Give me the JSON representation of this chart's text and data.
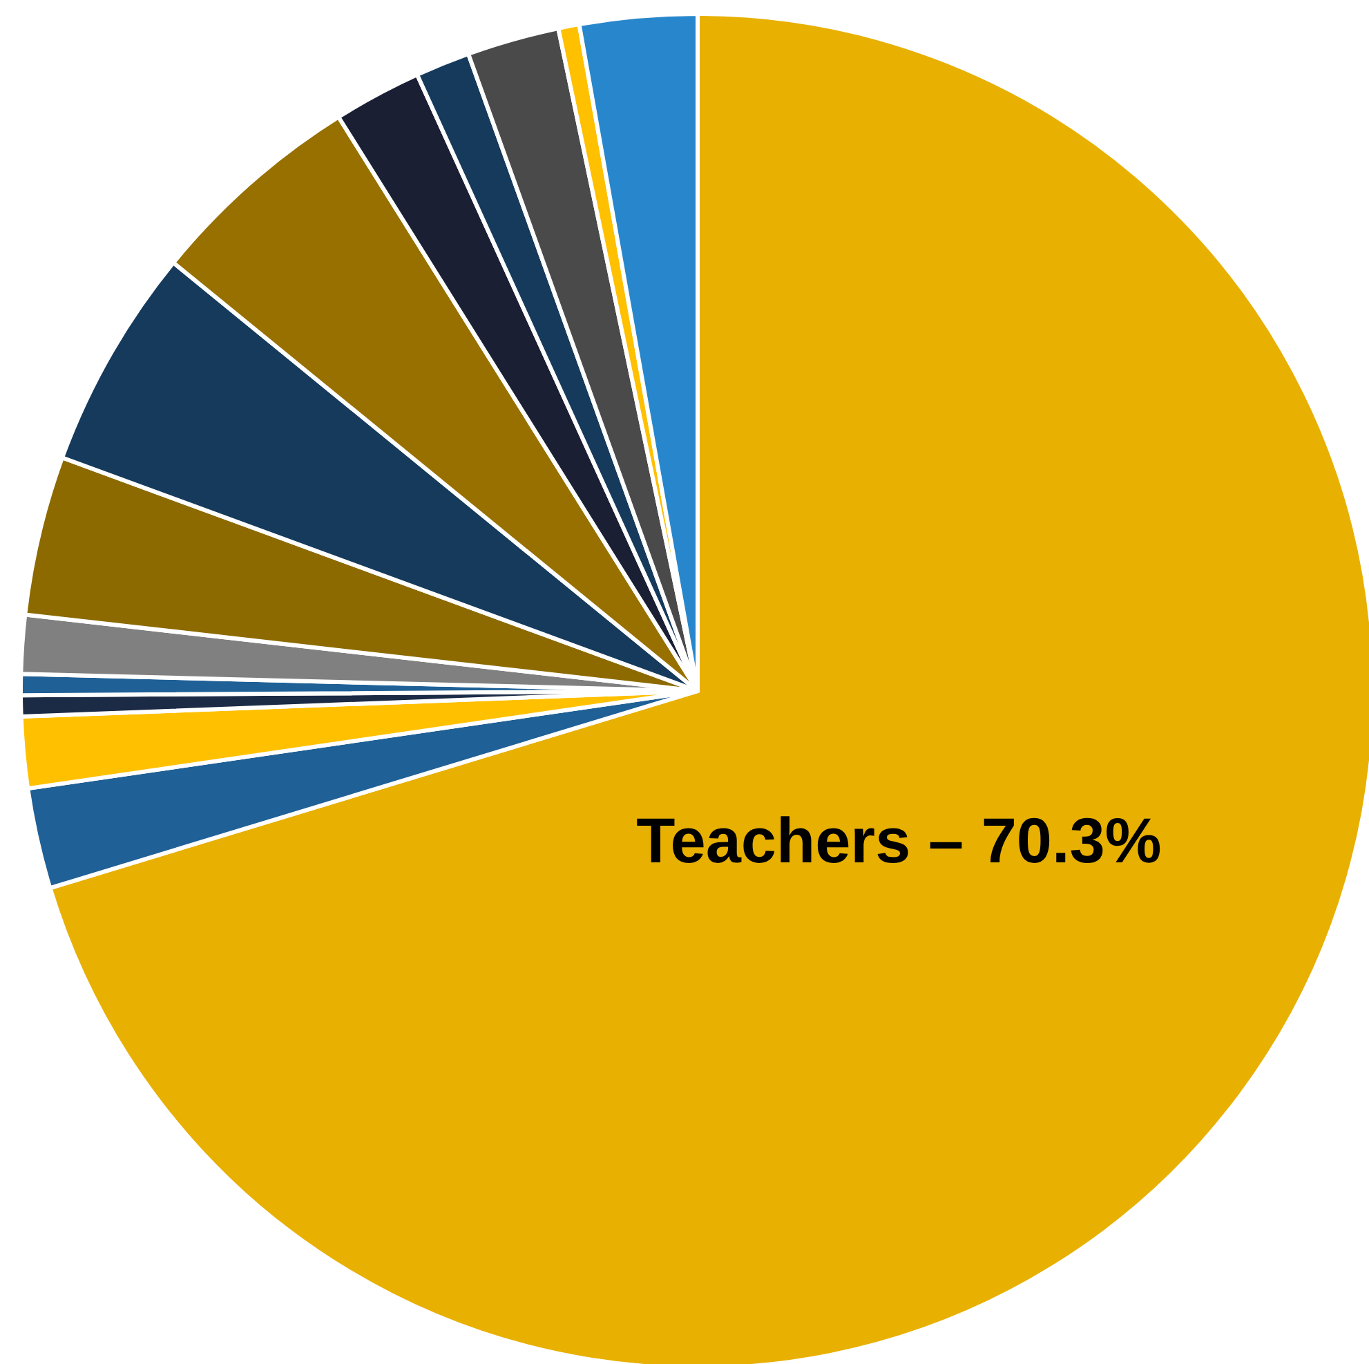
{
  "chart_data": {
    "type": "pie",
    "categories": [
      "Teachers –",
      null,
      null,
      null,
      null,
      null,
      null,
      null,
      null,
      null,
      null,
      null,
      null,
      null
    ],
    "values": [
      70.3,
      2.4,
      1.7,
      0.5,
      0.5,
      1.4,
      3.8,
      5.3,
      5.2,
      2.1,
      1.3,
      2.2,
      0.5,
      2.8
    ],
    "value_labels": [
      "70.3%",
      null,
      null,
      null,
      null,
      null,
      null,
      null,
      null,
      null,
      null,
      null,
      null,
      null
    ],
    "colors": [
      "#e8b000",
      "#1f6096",
      "#ffc000",
      "#1b2a45",
      "#1f6096",
      "#808080",
      "#8c6a00",
      "#153a5b",
      "#977000",
      "#1a1f33",
      "#163a5b",
      "#4a4a4a",
      "#ffc000",
      "#2887cc"
    ],
    "legend": false
  }
}
